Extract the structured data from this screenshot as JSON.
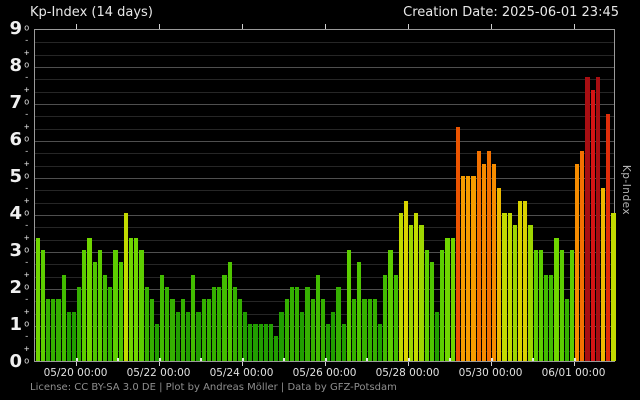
{
  "header": {
    "title": "Kp-Index (14 days)",
    "creation_date": "Creation Date: 2025-06-01 23:45"
  },
  "footer": {
    "license": "License: CC BY-SA 3.0 DE | Plot by Andreas Möller | Data by GFZ-Potsdam"
  },
  "axes": {
    "y_label_right": "Kp-Index",
    "y_ticks": [
      0,
      1,
      2,
      3,
      4,
      5,
      6,
      7,
      8,
      9
    ],
    "y_sub_marks": [
      "+",
      "o",
      "-"
    ],
    "x_tick_labels": [
      "05/20 00:00",
      "05/22 00:00",
      "05/24 00:00",
      "05/26 00:00",
      "05/28 00:00",
      "05/30 00:00",
      "06/01 00:00"
    ]
  },
  "chart_data": {
    "type": "bar",
    "title": "Kp-Index (14 days)",
    "ylabel": "Kp-Index",
    "ylim": [
      0,
      9
    ],
    "days": 14,
    "bars_per_day": 8,
    "interval_hours": 3,
    "grid": "horizontal, thirds minor + integer major",
    "legend": "none",
    "x_tick_labels": [
      "05/20 00:00",
      "05/22 00:00",
      "05/24 00:00",
      "05/26 00:00",
      "05/28 00:00",
      "05/30 00:00",
      "06/01 00:00"
    ],
    "values": [
      3.33,
      3.0,
      1.67,
      1.67,
      1.67,
      2.33,
      1.33,
      1.33,
      2.0,
      3.0,
      3.33,
      2.67,
      3.0,
      2.33,
      2.0,
      3.0,
      2.67,
      4.0,
      3.33,
      3.33,
      3.0,
      2.0,
      1.67,
      1.0,
      2.33,
      2.0,
      1.67,
      1.33,
      1.67,
      1.33,
      2.33,
      1.33,
      1.67,
      1.67,
      2.0,
      2.0,
      2.33,
      2.67,
      2.0,
      1.67,
      1.33,
      1.0,
      1.0,
      1.0,
      1.0,
      1.0,
      0.67,
      1.33,
      1.67,
      2.0,
      2.0,
      1.33,
      2.0,
      1.67,
      2.33,
      1.67,
      1.0,
      1.33,
      2.0,
      1.0,
      3.0,
      1.67,
      2.67,
      1.67,
      1.67,
      1.67,
      1.0,
      2.33,
      3.0,
      2.33,
      4.0,
      4.33,
      3.67,
      4.0,
      3.67,
      3.0,
      2.67,
      1.33,
      3.0,
      3.33,
      3.33,
      6.33,
      5.0,
      5.0,
      5.0,
      5.67,
      5.33,
      5.67,
      5.33,
      4.67,
      4.0,
      4.0,
      3.67,
      4.33,
      4.33,
      3.67,
      3.0,
      3.0,
      2.33,
      2.33,
      3.33,
      3.0,
      1.67,
      3.0,
      5.33,
      5.67,
      7.67,
      7.33,
      7.67,
      4.67,
      6.67,
      4.0
    ],
    "color_scale": [
      {
        "max": 1.4,
        "color": "#219e00"
      },
      {
        "max": 2.05,
        "color": "#35b000"
      },
      {
        "max": 2.4,
        "color": "#42bc00"
      },
      {
        "max": 2.72,
        "color": "#4fc600"
      },
      {
        "max": 3.05,
        "color": "#5dce00"
      },
      {
        "max": 3.4,
        "color": "#70d600"
      },
      {
        "max": 3.72,
        "color": "#9ed600"
      },
      {
        "max": 4.05,
        "color": "#c2da00"
      },
      {
        "max": 4.4,
        "color": "#dad300"
      },
      {
        "max": 4.72,
        "color": "#eeb900"
      },
      {
        "max": 5.05,
        "color": "#f59c00"
      },
      {
        "max": 5.4,
        "color": "#f68c00"
      },
      {
        "max": 5.72,
        "color": "#f37100"
      },
      {
        "max": 6.4,
        "color": "#ec5400"
      },
      {
        "max": 6.72,
        "color": "#e02d0a"
      },
      {
        "max": 7.4,
        "color": "#d51414"
      },
      {
        "max": 9.1,
        "color": "#a80e12"
      }
    ]
  }
}
